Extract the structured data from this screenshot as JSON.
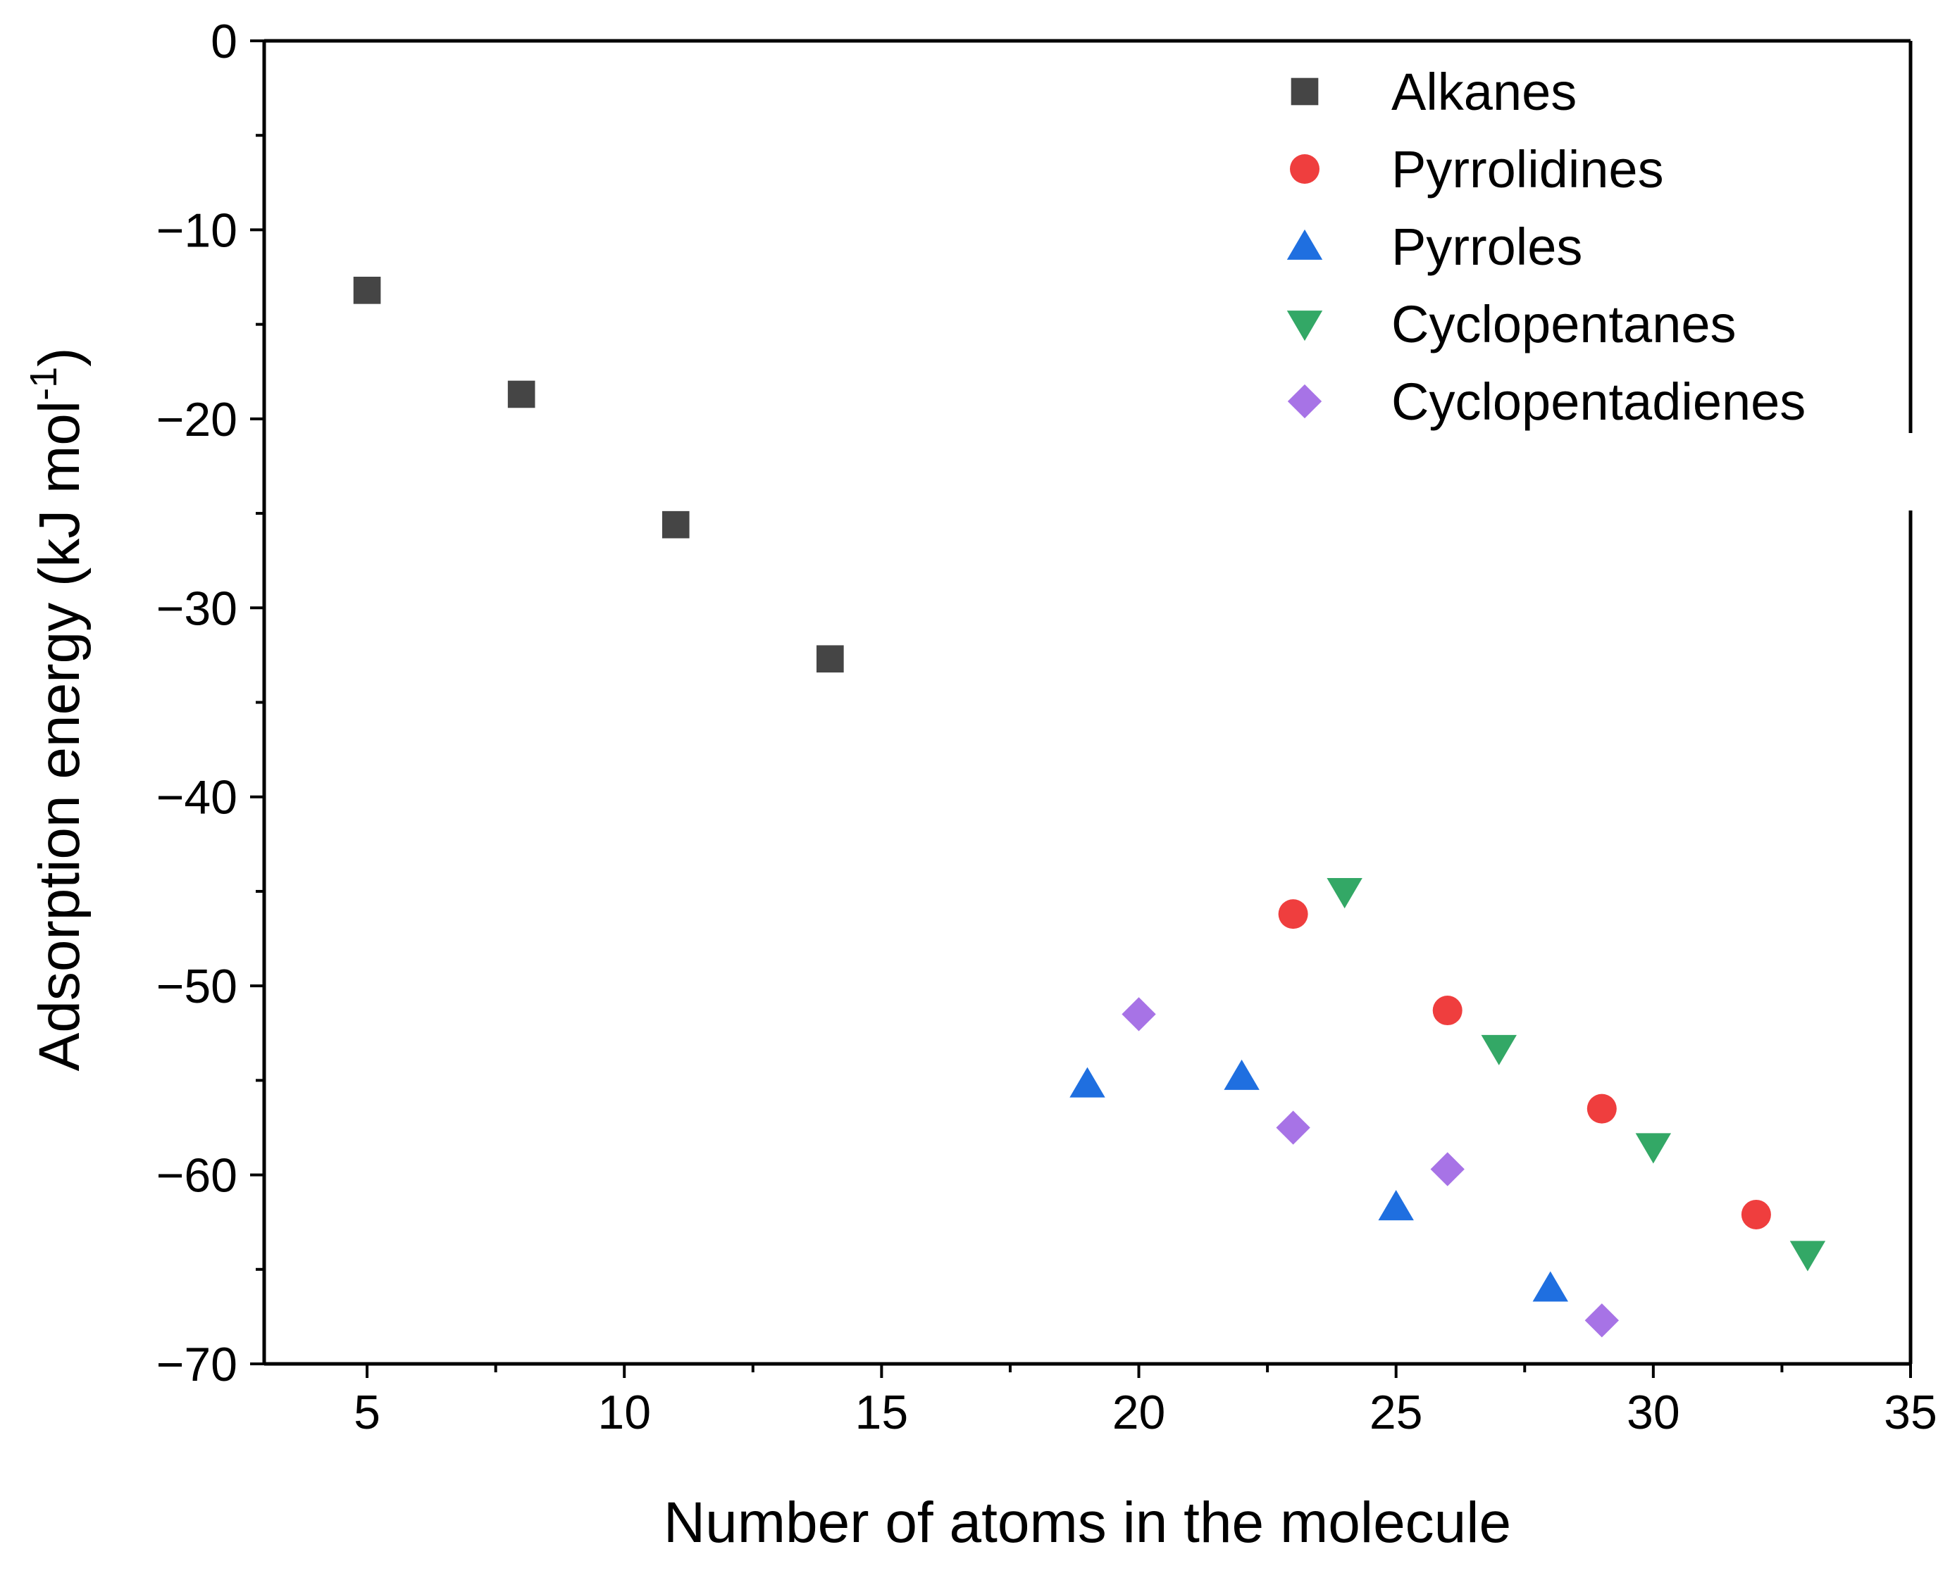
{
  "chart_data": {
    "type": "scatter",
    "title": "",
    "xlabel": "Number of atoms in the molecule",
    "ylabel": "Adsorption energy (kJ mol",
    "ylabel_superscript": "-1",
    "ylabel_close": ")",
    "xlim": [
      3,
      35
    ],
    "ylim": [
      -70,
      0
    ],
    "x_ticks": [
      5,
      10,
      15,
      20,
      25,
      30,
      35
    ],
    "y_ticks": [
      0,
      -10,
      -20,
      -30,
      -40,
      -50,
      -60,
      -70
    ],
    "x_tick_labels": [
      "5",
      "10",
      "15",
      "20",
      "25",
      "30",
      "35"
    ],
    "y_tick_labels": [
      "0",
      "−10",
      "−20",
      "−30",
      "−40",
      "−50",
      "−60",
      "−70"
    ],
    "grid": false,
    "legend_position": "top-right",
    "series": [
      {
        "name": "Alkanes",
        "marker": "square",
        "color": "#454545",
        "points": [
          {
            "x": 5,
            "y": -13.2
          },
          {
            "x": 8,
            "y": -18.7
          },
          {
            "x": 11,
            "y": -25.6
          },
          {
            "x": 14,
            "y": -32.7
          }
        ]
      },
      {
        "name": "Pyrrolidines",
        "marker": "circle",
        "color": "#ef3e3e",
        "points": [
          {
            "x": 23,
            "y": -46.2
          },
          {
            "x": 26,
            "y": -51.3
          },
          {
            "x": 29,
            "y": -56.5
          },
          {
            "x": 32,
            "y": -62.1
          }
        ]
      },
      {
        "name": "Pyrroles",
        "marker": "triangle-up",
        "color": "#1f6fe0",
        "points": [
          {
            "x": 19,
            "y": -55.2
          },
          {
            "x": 22,
            "y": -54.8
          },
          {
            "x": 25,
            "y": -61.7
          },
          {
            "x": 28,
            "y": -66.0
          }
        ]
      },
      {
        "name": "Cyclopentanes",
        "marker": "triangle-down",
        "color": "#33a866",
        "points": [
          {
            "x": 24,
            "y": -45.0
          },
          {
            "x": 27,
            "y": -53.3
          },
          {
            "x": 30,
            "y": -58.5
          },
          {
            "x": 33,
            "y": -64.2
          }
        ]
      },
      {
        "name": "Cyclopentadienes",
        "marker": "diamond",
        "color": "#a773e6",
        "points": [
          {
            "x": 20,
            "y": -51.5
          },
          {
            "x": 23,
            "y": -57.5
          },
          {
            "x": 26,
            "y": -59.7
          },
          {
            "x": 29,
            "y": -67.7
          }
        ]
      }
    ]
  }
}
